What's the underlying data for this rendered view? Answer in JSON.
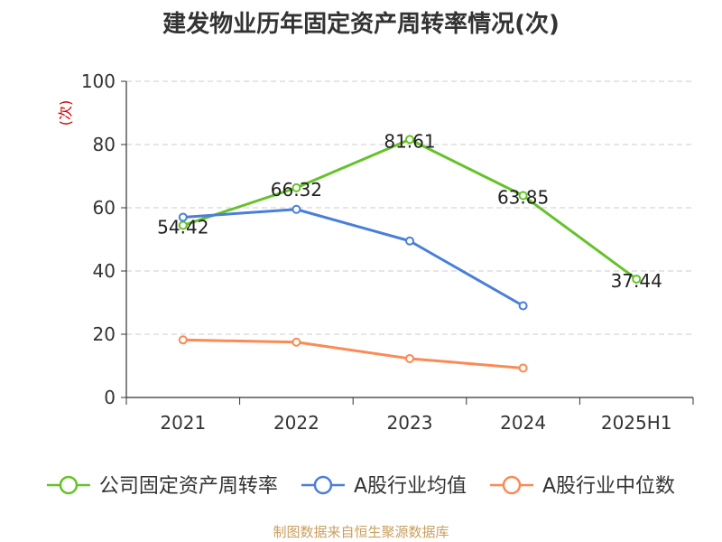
{
  "chart_data": {
    "type": "line",
    "title": "建发物业历年固定资产周转率情况(次)",
    "ylabel": "(次)",
    "ylim": [
      0,
      100
    ],
    "yticks": [
      0,
      20,
      40,
      60,
      80,
      100
    ],
    "categories": [
      "2021",
      "2022",
      "2023",
      "2024",
      "2025H1"
    ],
    "grid": true,
    "legend_position": "bottom",
    "series": [
      {
        "name": "公司固定资产周转率",
        "values": [
          54.42,
          66.32,
          81.61,
          63.85,
          37.44
        ],
        "color": "#66c22b",
        "labels": [
          "54.42",
          "66.32",
          "81.61",
          "63.85",
          "37.44"
        ]
      },
      {
        "name": "A股行业均值",
        "values": [
          57,
          59.5,
          49.5,
          29,
          null
        ],
        "color": "#4a7fd9"
      },
      {
        "name": "A股行业中位数",
        "values": [
          18.2,
          17.5,
          12.3,
          9.3,
          null
        ],
        "color": "#fb8a55"
      }
    ],
    "source": "制图数据来自恒生聚源数据库",
    "colors": {
      "axis": "#333333",
      "grid": "#cccccc",
      "ylabel": "#cc0000",
      "source": "#c8a060"
    }
  }
}
